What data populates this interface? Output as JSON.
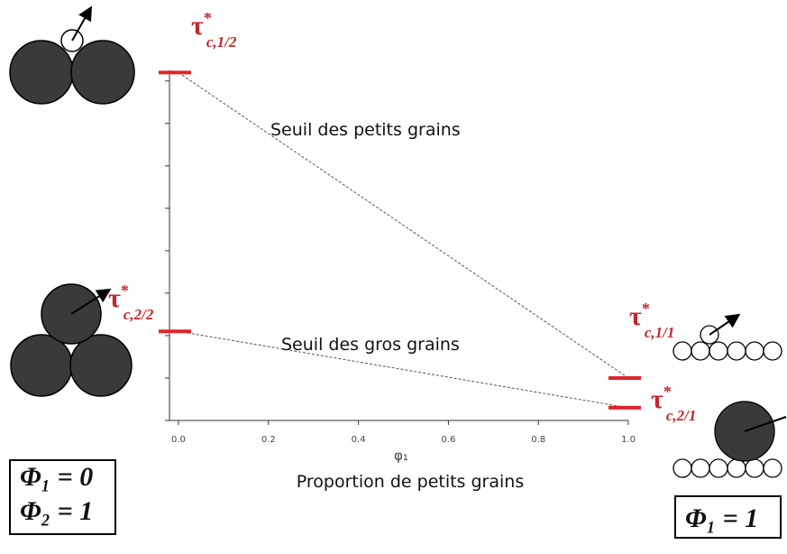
{
  "chart_data": {
    "type": "line",
    "x": [
      0.0,
      1.0
    ],
    "xlim": [
      -0.02,
      1.0
    ],
    "xticks": [
      {
        "value": 0,
        "label": "0.0"
      },
      0.2,
      0.4,
      0.6,
      0.8,
      {
        "value": 1,
        "label": "1.0"
      }
    ],
    "ylim": [
      0,
      8.25
    ],
    "yticks": [
      0,
      1,
      2,
      3,
      4,
      5,
      6,
      7,
      8
    ],
    "xlabel": "φ₁",
    "xlabel_caption": "Proportion de petits grains",
    "marker_color": "#e0242a",
    "series": [
      {
        "name": "Seuil des petits grains",
        "color": "#555555",
        "values": [
          8.2,
          1.0
        ]
      },
      {
        "name": "Seuil des gros grains",
        "color": "#555555",
        "values": [
          2.1,
          0.3
        ]
      }
    ],
    "tau_labels": [
      {
        "symbol": "τ",
        "sup": "*",
        "sub": "c,1/2"
      },
      {
        "symbol": "τ",
        "sup": "*",
        "sub": "c,2/2"
      },
      {
        "symbol": "τ",
        "sup": "*",
        "sub": "c,1/1"
      },
      {
        "symbol": "τ",
        "sup": "*",
        "sub": "c,2/1"
      }
    ],
    "boxes": [
      [
        "Φ₁ = 0",
        "Φ₂ = 1"
      ],
      [
        "Φ₁ = 1"
      ]
    ]
  }
}
